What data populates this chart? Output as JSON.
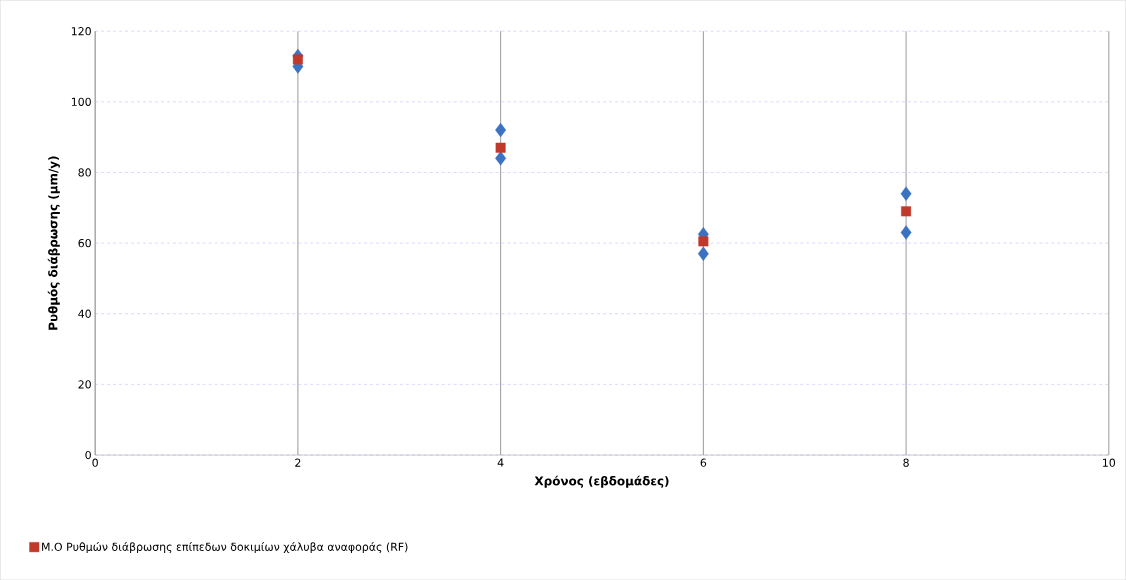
{
  "chart_data": {
    "type": "scatter",
    "xlabel": "Χρόνος (εβδομάδες)",
    "ylabel": "Ρυθμός διάβρωσης (μm/y)",
    "xlim": [
      0,
      10
    ],
    "xticks": [
      0,
      2,
      4,
      6,
      8,
      10
    ],
    "ylim": [
      0,
      120
    ],
    "yticks": [
      0,
      20,
      40,
      60,
      80,
      100,
      120
    ],
    "grid": true,
    "legend": "bottom",
    "series": [
      {
        "color": "#3b73c0",
        "marker": "diamond",
        "x": [
          2,
          2,
          4,
          4,
          6,
          6,
          8,
          8
        ],
        "values": [
          113,
          110,
          92,
          84,
          62.5,
          57,
          74,
          63
        ]
      },
      {
        "name": "Μ.Ο Ρυθμών διάβρωσης επίπεδων δοκιμίων χάλυβα αναφοράς (RF)",
        "color": "#c0392b",
        "marker": "square",
        "x": [
          2,
          4,
          6,
          8
        ],
        "values": [
          112,
          87,
          60.5,
          69
        ]
      }
    ]
  }
}
